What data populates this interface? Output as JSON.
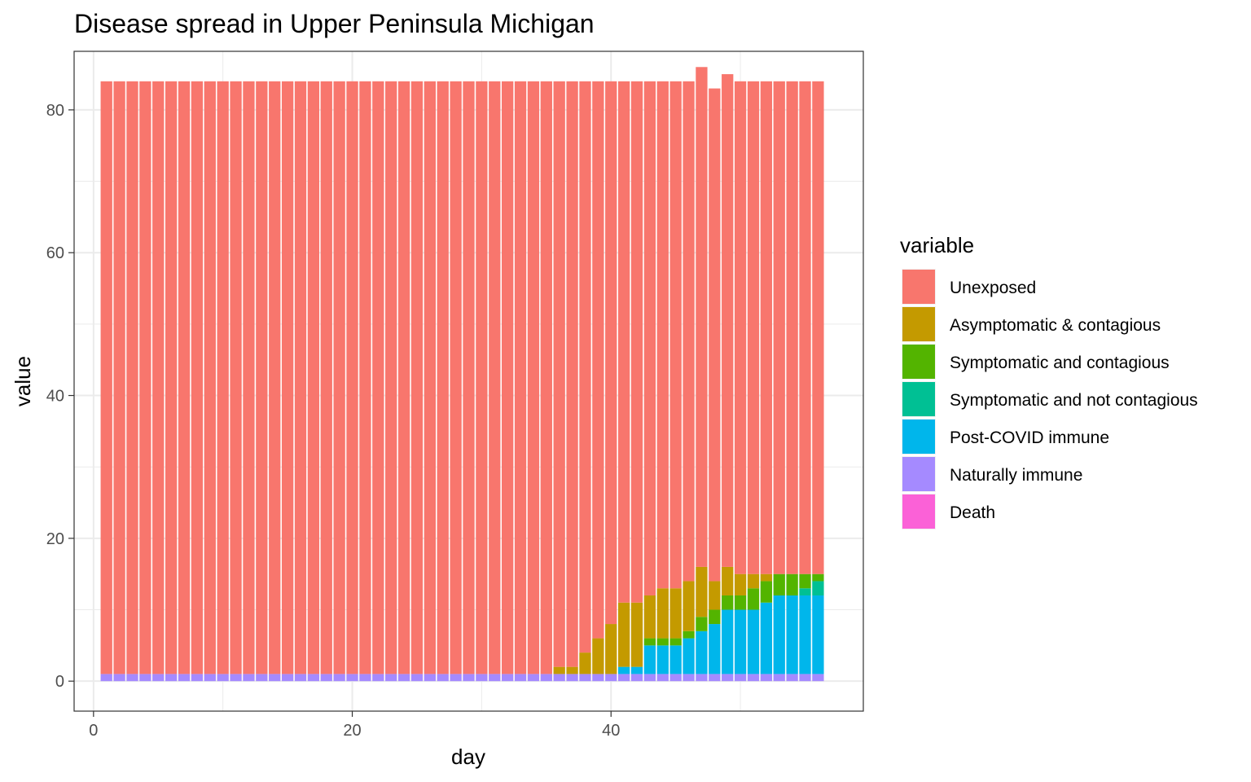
{
  "chart_data": {
    "type": "bar",
    "stacked": true,
    "title": "Disease spread in Upper Peninsula Michigan",
    "xlabel": "day",
    "ylabel": "value",
    "xlim": [
      -1.5,
      59.5
    ],
    "ylim": [
      -4.2,
      88.2
    ],
    "xticks": [
      0,
      20,
      40
    ],
    "yticks": [
      0,
      20,
      40,
      60,
      80
    ],
    "grid": true,
    "legend": {
      "title": "variable",
      "placement": "right"
    },
    "stack_order_bottom_to_top": [
      "Death",
      "Naturally immune",
      "Post-COVID immune",
      "Symptomatic and not contagious",
      "Symptomatic and contagious",
      "Asymptomatic & contagious",
      "Unexposed"
    ],
    "series": [
      {
        "name": "Unexposed",
        "color": "#F8766D"
      },
      {
        "name": "Asymptomatic & contagious",
        "color": "#C49A00"
      },
      {
        "name": "Symptomatic and contagious",
        "color": "#53B400"
      },
      {
        "name": "Symptomatic and not contagious",
        "color": "#00C094"
      },
      {
        "name": "Post-COVID immune",
        "color": "#00B6EB"
      },
      {
        "name": "Naturally immune",
        "color": "#A58AFF"
      },
      {
        "name": "Death",
        "color": "#FB61D7"
      }
    ],
    "days": [
      1,
      2,
      3,
      4,
      5,
      6,
      7,
      8,
      9,
      10,
      11,
      12,
      13,
      14,
      15,
      16,
      17,
      18,
      19,
      20,
      21,
      22,
      23,
      24,
      25,
      26,
      27,
      28,
      29,
      30,
      31,
      32,
      33,
      34,
      35,
      36,
      37,
      38,
      39,
      40,
      41,
      42,
      43,
      44,
      45,
      46,
      47,
      48,
      49,
      50,
      51,
      52,
      53,
      54,
      55,
      56
    ],
    "values": {
      "Unexposed": [
        83,
        83,
        83,
        83,
        83,
        83,
        83,
        83,
        83,
        83,
        83,
        83,
        83,
        83,
        83,
        83,
        83,
        83,
        83,
        83,
        83,
        83,
        83,
        83,
        83,
        83,
        83,
        83,
        83,
        83,
        83,
        83,
        83,
        83,
        83,
        82,
        82,
        80,
        78,
        76,
        73,
        73,
        72,
        71,
        71,
        70,
        70,
        69,
        69,
        69,
        69,
        69,
        69,
        69,
        69,
        69
      ],
      "Asymptomatic & contagious": [
        0,
        0,
        0,
        0,
        0,
        0,
        0,
        0,
        0,
        0,
        0,
        0,
        0,
        0,
        0,
        0,
        0,
        0,
        0,
        0,
        0,
        0,
        0,
        0,
        0,
        0,
        0,
        0,
        0,
        0,
        0,
        0,
        0,
        0,
        0,
        1,
        1,
        3,
        5,
        7,
        9,
        9,
        6,
        7,
        7,
        7,
        7,
        4,
        4,
        3,
        2,
        1,
        0,
        0,
        0,
        0
      ],
      "Symptomatic and contagious": [
        0,
        0,
        0,
        0,
        0,
        0,
        0,
        0,
        0,
        0,
        0,
        0,
        0,
        0,
        0,
        0,
        0,
        0,
        0,
        0,
        0,
        0,
        0,
        0,
        0,
        0,
        0,
        0,
        0,
        0,
        0,
        0,
        0,
        0,
        0,
        0,
        0,
        0,
        0,
        0,
        0,
        0,
        1,
        1,
        1,
        1,
        2,
        2,
        2,
        2,
        3,
        3,
        3,
        3,
        2,
        1
      ],
      "Symptomatic and not contagious": [
        0,
        0,
        0,
        0,
        0,
        0,
        0,
        0,
        0,
        0,
        0,
        0,
        0,
        0,
        0,
        0,
        0,
        0,
        0,
        0,
        0,
        0,
        0,
        0,
        0,
        0,
        0,
        0,
        0,
        0,
        0,
        0,
        0,
        0,
        0,
        0,
        0,
        0,
        0,
        0,
        0,
        0,
        0,
        0,
        0,
        0,
        0,
        0,
        0,
        0,
        0,
        0,
        0,
        0,
        1,
        2
      ],
      "Post-COVID immune": [
        0,
        0,
        0,
        0,
        0,
        0,
        0,
        0,
        0,
        0,
        0,
        0,
        0,
        0,
        0,
        0,
        0,
        0,
        0,
        0,
        0,
        0,
        0,
        0,
        0,
        0,
        0,
        0,
        0,
        0,
        0,
        0,
        0,
        0,
        0,
        0,
        0,
        0,
        0,
        0,
        1,
        1,
        4,
        4,
        4,
        5,
        6,
        7,
        9,
        9,
        9,
        10,
        11,
        11,
        11,
        11
      ],
      "Naturally immune": [
        1,
        1,
        1,
        1,
        1,
        1,
        1,
        1,
        1,
        1,
        1,
        1,
        1,
        1,
        1,
        1,
        1,
        1,
        1,
        1,
        1,
        1,
        1,
        1,
        1,
        1,
        1,
        1,
        1,
        1,
        1,
        1,
        1,
        1,
        1,
        1,
        1,
        1,
        1,
        1,
        1,
        1,
        1,
        1,
        1,
        1,
        1,
        1,
        1,
        1,
        1,
        1,
        1,
        1,
        1,
        1
      ],
      "Death": [
        0,
        0,
        0,
        0,
        0,
        0,
        0,
        0,
        0,
        0,
        0,
        0,
        0,
        0,
        0,
        0,
        0,
        0,
        0,
        0,
        0,
        0,
        0,
        0,
        0,
        0,
        0,
        0,
        0,
        0,
        0,
        0,
        0,
        0,
        0,
        0,
        0,
        0,
        0,
        0,
        0,
        0,
        0,
        0,
        0,
        0,
        0,
        0,
        0,
        0,
        0,
        0,
        0,
        0,
        0,
        0
      ]
    }
  }
}
